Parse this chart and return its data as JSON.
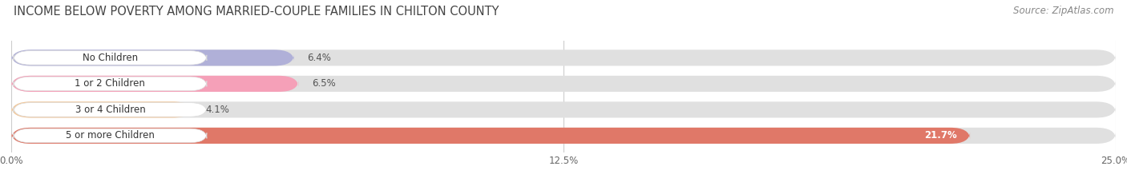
{
  "title": "INCOME BELOW POVERTY AMONG MARRIED-COUPLE FAMILIES IN CHILTON COUNTY",
  "source": "Source: ZipAtlas.com",
  "categories": [
    "No Children",
    "1 or 2 Children",
    "3 or 4 Children",
    "5 or more Children"
  ],
  "values": [
    6.4,
    6.5,
    4.1,
    21.7
  ],
  "bar_colors": [
    "#b0b0d8",
    "#f5a0b8",
    "#f5c898",
    "#e07868"
  ],
  "bar_bg_color": "#e0e0e0",
  "xlim": [
    0,
    25.0
  ],
  "xticks": [
    0.0,
    12.5,
    25.0
  ],
  "xtick_labels": [
    "0.0%",
    "12.5%",
    "25.0%"
  ],
  "title_fontsize": 10.5,
  "source_fontsize": 8.5,
  "bar_label_fontsize": 8.5,
  "category_fontsize": 8.5,
  "background_color": "#ffffff",
  "bar_height": 0.62,
  "grid_color": "#cccccc",
  "label_pill_color": "#ffffff",
  "text_color": "#333333",
  "value_label_dark": "#555555",
  "value_label_light": "#ffffff"
}
